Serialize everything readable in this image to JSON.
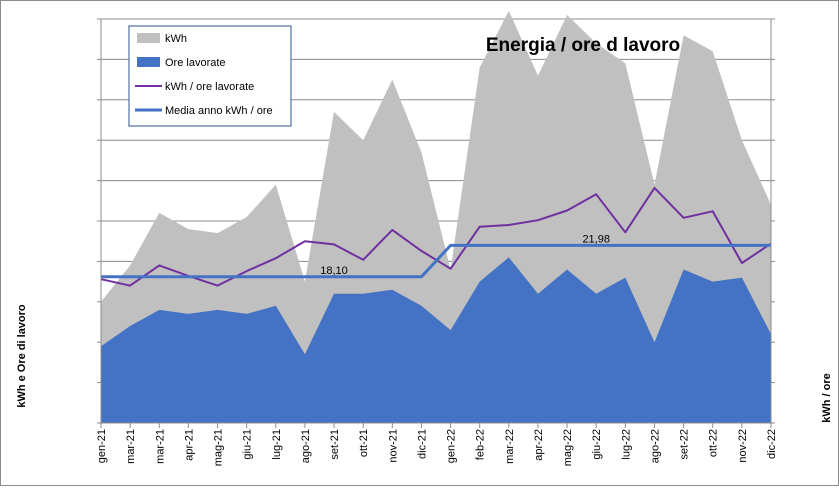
{
  "chart_data": {
    "type": "area",
    "title": "Energia / ore d lavoro",
    "ylabel_left": "kWh     e   Ore di lavoro",
    "ylabel_right": "kWh / ore",
    "xlabel": "",
    "categories": [
      "gen-21",
      "mar-21",
      "mar-21",
      "apr-21",
      "mag-21",
      "giu-21",
      "lug-21",
      "ago-21",
      "set-21",
      "ott-21",
      "nov-21",
      "dic-21",
      "gen-22",
      "feb-22",
      "mar-22",
      "apr-22",
      "mag-22",
      "giu-22",
      "lug-22",
      "ago-22",
      "set-22",
      "ott-22",
      "nov-22",
      "dic-22"
    ],
    "left_axis": {
      "ylim": [
        0,
        10
      ],
      "major_step": 1,
      "grid": true
    },
    "right_axis": {
      "ylim": [
        0,
        50
      ],
      "major_step": 5
    },
    "series": [
      {
        "name": "kWh",
        "type": "area",
        "axis": "left",
        "color": "#c0c0c0",
        "values": [
          3.0,
          3.9,
          5.2,
          4.8,
          4.7,
          5.1,
          5.9,
          3.5,
          7.7,
          7.0,
          8.5,
          6.7,
          3.8,
          8.8,
          10.2,
          8.6,
          10.1,
          9.4,
          8.9,
          5.9,
          9.6,
          9.2,
          7.0,
          5.4
        ]
      },
      {
        "name": "Ore lavorate",
        "type": "area",
        "axis": "left",
        "color": "#4472c4",
        "values": [
          1.9,
          2.4,
          2.8,
          2.7,
          2.8,
          2.7,
          2.9,
          1.7,
          3.2,
          3.2,
          3.3,
          2.9,
          2.3,
          3.5,
          4.1,
          3.2,
          3.8,
          3.2,
          3.6,
          2.0,
          3.8,
          3.5,
          3.6,
          2.2
        ]
      },
      {
        "name": "kWh / ore lavorate",
        "type": "line",
        "axis": "right",
        "color": "#7030a0",
        "values": [
          17.8,
          17.0,
          19.5,
          18.2,
          17.0,
          18.8,
          20.4,
          22.5,
          22.1,
          20.2,
          23.9,
          21.3,
          19.1,
          24.3,
          24.5,
          25.1,
          26.3,
          28.3,
          23.6,
          29.1,
          25.4,
          26.2,
          19.8,
          22.2
        ]
      },
      {
        "name": "Media anno kWh / ore",
        "type": "line",
        "axis": "right",
        "color": "#4472c4",
        "values": [
          18.1,
          18.1,
          18.1,
          18.1,
          18.1,
          18.1,
          18.1,
          18.1,
          18.1,
          18.1,
          18.1,
          18.1,
          21.98,
          21.98,
          21.98,
          21.98,
          21.98,
          21.98,
          21.98,
          21.98,
          21.98,
          21.98,
          21.98,
          21.98
        ]
      }
    ],
    "data_labels": [
      {
        "series": "Media anno kWh / ore",
        "text": "18,10",
        "index": 8
      },
      {
        "series": "Media anno kWh / ore",
        "text": "21,98",
        "index": 17
      }
    ],
    "legend": {
      "position": "top-left",
      "items": [
        "kWh",
        "Ore lavorate",
        "kWh / ore lavorate",
        "Media anno kWh / ore"
      ]
    }
  }
}
